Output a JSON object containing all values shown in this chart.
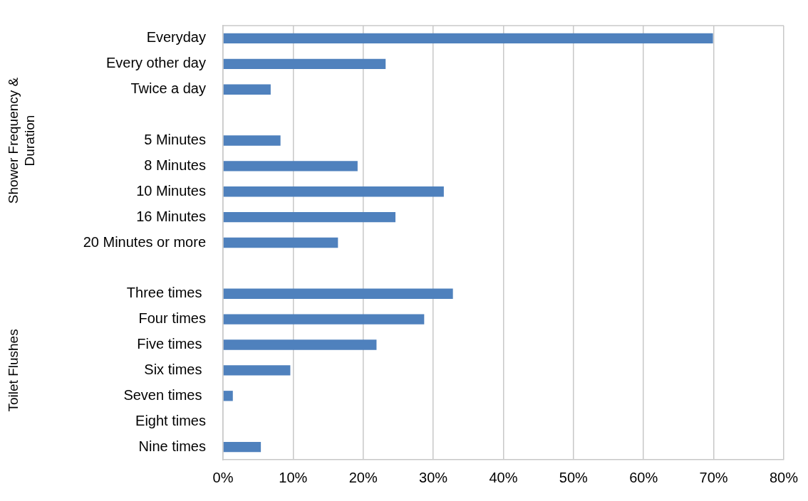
{
  "chart_data": {
    "type": "bar",
    "orientation": "horizontal",
    "categories": [
      "Everyday",
      "Every other day",
      "Twice a day",
      null,
      "5 Minutes",
      "8 Minutes",
      "10 Minutes",
      "16 Minutes",
      "20 Minutes or more",
      null,
      "Three times ",
      "Four times",
      "Five times ",
      "Six times ",
      "Seven times ",
      "Eight times",
      "Nine times"
    ],
    "values": [
      69.9,
      23.2,
      6.8,
      null,
      8.2,
      19.2,
      31.5,
      24.6,
      16.4,
      null,
      32.8,
      28.7,
      21.9,
      9.6,
      1.4,
      0,
      5.4
    ],
    "color": "#4f81bd",
    "xlim": [
      0,
      80
    ],
    "xticks": [
      {
        "value": 0,
        "label": "0%"
      },
      {
        "value": 10,
        "label": "10%"
      },
      {
        "value": 20,
        "label": "20%"
      },
      {
        "value": 30,
        "label": "30%"
      },
      {
        "value": 40,
        "label": "40%"
      },
      {
        "value": 50,
        "label": "50%"
      },
      {
        "value": 60,
        "label": "60%"
      },
      {
        "value": 70,
        "label": "70%"
      },
      {
        "value": 80,
        "label": "80%"
      }
    ],
    "grid": "x",
    "annotations": [
      "Shower Frequency & Duration",
      "Toilet Flushes"
    ]
  }
}
